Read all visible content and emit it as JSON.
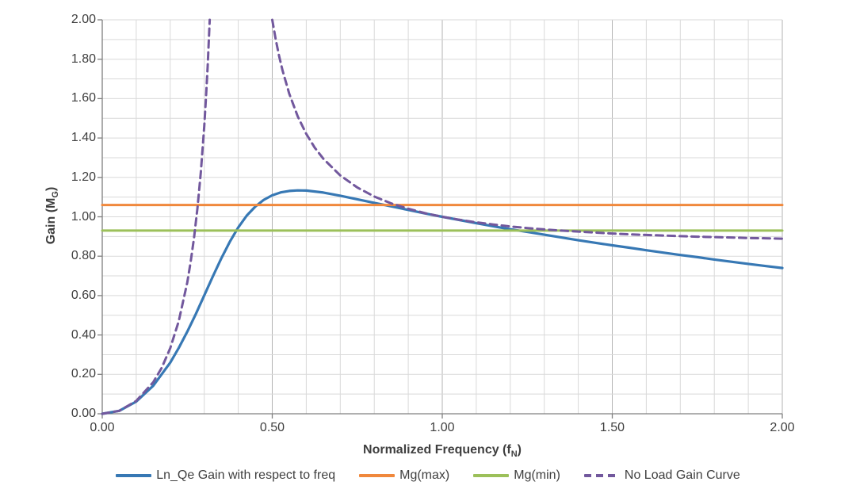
{
  "chart_data": {
    "type": "line",
    "title": "",
    "xlabel": {
      "main": "Normalized Frequency (f",
      "sub": "N",
      "end": ")"
    },
    "ylabel": {
      "main": "Gain (M",
      "sub": "G",
      "end": ")"
    },
    "xlim": [
      0,
      2
    ],
    "ylim": [
      0,
      2
    ],
    "grid": {
      "minor_step": 0.1,
      "x_major_step": 0.5,
      "grid_on": true
    },
    "legend_position": "bottom",
    "x_ticks": [
      {
        "value": 0.0,
        "label": "0.00"
      },
      {
        "value": 0.5,
        "label": "0.50"
      },
      {
        "value": 1.0,
        "label": "1.00"
      },
      {
        "value": 1.5,
        "label": "1.50"
      },
      {
        "value": 2.0,
        "label": "2.00"
      }
    ],
    "y_ticks": [
      {
        "value": 0.0,
        "label": "0.00"
      },
      {
        "value": 0.2,
        "label": "0.20"
      },
      {
        "value": 0.4,
        "label": "0.40"
      },
      {
        "value": 0.6,
        "label": "0.60"
      },
      {
        "value": 0.8,
        "label": "0.80"
      },
      {
        "value": 1.0,
        "label": "1.00"
      },
      {
        "value": 1.2,
        "label": "1.20"
      },
      {
        "value": 1.4,
        "label": "1.40"
      },
      {
        "value": 1.6,
        "label": "1.60"
      },
      {
        "value": 1.8,
        "label": "1.80"
      },
      {
        "value": 2.0,
        "label": "2.00"
      }
    ],
    "palette": {
      "grid_minor": "#D9D9D9",
      "grid_major": "#B3B3B3",
      "axis": "#808080",
      "text": "#3F3F3F"
    },
    "series": [
      {
        "name": "Ln_Qe Gain with respect to freq",
        "color": "#3778B4",
        "style": "solid",
        "width": 3.2,
        "peak": {
          "x": 0.58,
          "y": 1.13
        },
        "segments": [
          [
            [
              0,
              0
            ],
            [
              0.05,
              0.015
            ],
            [
              0.1,
              0.062
            ],
            [
              0.15,
              0.142
            ],
            [
              0.2,
              0.26
            ],
            [
              0.225,
              0.334
            ],
            [
              0.25,
              0.417
            ],
            [
              0.275,
              0.506
            ],
            [
              0.3,
              0.601
            ],
            [
              0.325,
              0.696
            ],
            [
              0.35,
              0.788
            ],
            [
              0.375,
              0.873
            ],
            [
              0.4,
              0.946
            ],
            [
              0.425,
              1.006
            ],
            [
              0.45,
              1.052
            ],
            [
              0.475,
              1.086
            ],
            [
              0.5,
              1.109
            ],
            [
              0.525,
              1.124
            ],
            [
              0.55,
              1.131
            ],
            [
              0.575,
              1.134
            ],
            [
              0.6,
              1.133
            ],
            [
              0.65,
              1.123
            ],
            [
              0.7,
              1.107
            ],
            [
              0.75,
              1.089
            ],
            [
              0.8,
              1.071
            ],
            [
              0.85,
              1.053
            ],
            [
              0.9,
              1.035
            ],
            [
              0.95,
              1.017
            ],
            [
              1,
              1
            ],
            [
              1.05,
              0.984
            ],
            [
              1.1,
              0.968
            ],
            [
              1.15,
              0.952
            ],
            [
              1.2,
              0.937
            ],
            [
              1.25,
              0.923
            ],
            [
              1.3,
              0.909
            ],
            [
              1.35,
              0.895
            ],
            [
              1.4,
              0.881
            ],
            [
              1.45,
              0.868
            ],
            [
              1.5,
              0.855
            ],
            [
              1.55,
              0.843
            ],
            [
              1.6,
              0.83
            ],
            [
              1.65,
              0.818
            ],
            [
              1.7,
              0.806
            ],
            [
              1.75,
              0.795
            ],
            [
              1.8,
              0.783
            ],
            [
              1.85,
              0.772
            ],
            [
              1.9,
              0.761
            ],
            [
              1.95,
              0.75
            ],
            [
              2,
              0.74
            ]
          ]
        ]
      },
      {
        "name": "Mg(max)",
        "color": "#F0883C",
        "style": "solid",
        "width": 3,
        "value": 1.06,
        "segments": [
          [
            [
              0,
              1.06
            ],
            [
              2,
              1.06
            ]
          ]
        ]
      },
      {
        "name": "Mg(min)",
        "color": "#9CC05A",
        "style": "solid",
        "width": 3,
        "value": 0.93,
        "segments": [
          [
            [
              0,
              0.93
            ],
            [
              2,
              0.93
            ]
          ]
        ]
      },
      {
        "name": "No Load Gain Curve",
        "color": "#72589D",
        "style": "dashed",
        "width": 3,
        "asymptote_x": 0.378,
        "segments": [
          [
            [
              0,
              0
            ],
            [
              0.05,
              0.015
            ],
            [
              0.1,
              0.065
            ],
            [
              0.15,
              0.16
            ],
            [
              0.175,
              0.234
            ],
            [
              0.2,
              0.333
            ],
            [
              0.225,
              0.47
            ],
            [
              0.25,
              0.667
            ],
            [
              0.26,
              0.77
            ],
            [
              0.27,
              0.893
            ],
            [
              0.28,
              1.043
            ],
            [
              0.29,
              1.227
            ],
            [
              0.3,
              1.459
            ],
            [
              0.305,
              1.6
            ],
            [
              0.31,
              1.762
            ],
            [
              0.3162,
              2.0
            ]
          ],
          [
            [
              0.5,
              2.0
            ],
            [
              0.51,
              1.902
            ],
            [
              0.52,
              1.817
            ],
            [
              0.53,
              1.744
            ],
            [
              0.55,
              1.624
            ],
            [
              0.575,
              1.509
            ],
            [
              0.6,
              1.421
            ],
            [
              0.625,
              1.351
            ],
            [
              0.65,
              1.295
            ],
            [
              0.7,
              1.21
            ],
            [
              0.75,
              1.149
            ],
            [
              0.8,
              1.103
            ],
            [
              0.85,
              1.068
            ],
            [
              0.9,
              1.041
            ],
            [
              0.95,
              1.018
            ],
            [
              1,
              1
            ],
            [
              1.05,
              0.985
            ],
            [
              1.1,
              0.972
            ],
            [
              1.15,
              0.961
            ],
            [
              1.2,
              0.951
            ],
            [
              1.25,
              0.943
            ],
            [
              1.3,
              0.936
            ],
            [
              1.35,
              0.93
            ],
            [
              1.4,
              0.925
            ],
            [
              1.45,
              0.92
            ],
            [
              1.5,
              0.915
            ],
            [
              1.55,
              0.911
            ],
            [
              1.6,
              0.908
            ],
            [
              1.65,
              0.905
            ],
            [
              1.7,
              0.902
            ],
            [
              1.75,
              0.899
            ],
            [
              1.8,
              0.897
            ],
            [
              1.85,
              0.895
            ],
            [
              1.9,
              0.892
            ],
            [
              1.95,
              0.891
            ],
            [
              2,
              0.889
            ]
          ]
        ]
      }
    ]
  }
}
